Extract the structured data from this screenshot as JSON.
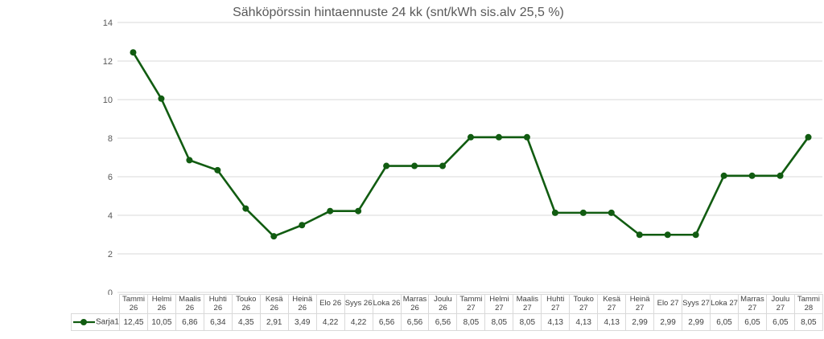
{
  "title": "Sähköpörssin hintaennuste 24 kk (snt/kWh sis.alv 25,5 %)",
  "chart_data": {
    "type": "line",
    "title": "Sähköpörssin hintaennuste 24 kk (snt/kWh sis.alv 25,5 %)",
    "xlabel": "",
    "ylabel": "",
    "ylim": [
      0,
      14
    ],
    "y_ticks": [
      0,
      2,
      4,
      6,
      8,
      10,
      12,
      14
    ],
    "grid": true,
    "legend_position": "data-table-row-header",
    "series_name": "Sarja1",
    "categories": [
      "Tammi 26",
      "Helmi 26",
      "Maalis 26",
      "Huhti 26",
      "Touko 26",
      "Kesä 26",
      "Heinä 26",
      "Elo 26",
      "Syys 26",
      "Loka 26",
      "Marras 26",
      "Joulu 26",
      "Tammi 27",
      "Helmi 27",
      "Maalis 27",
      "Huhti 27",
      "Touko 27",
      "Kesä 27",
      "Heinä 27",
      "Elo 27",
      "Syys 27",
      "Loka 27",
      "Marras 27",
      "Joulu 27",
      "Tammi 28"
    ],
    "header_lines": [
      [
        "Tammi",
        "26"
      ],
      [
        "Helmi",
        "26"
      ],
      [
        "Maalis",
        "26"
      ],
      [
        "Huhti",
        "26"
      ],
      [
        "Touko",
        "26"
      ],
      [
        "Kesä 26"
      ],
      [
        "Heinä",
        "26"
      ],
      [
        "Elo 26"
      ],
      [
        "Syys 26"
      ],
      [
        "Loka 26"
      ],
      [
        "Marras",
        "26"
      ],
      [
        "Joulu",
        "26"
      ],
      [
        "Tammi",
        "27"
      ],
      [
        "Helmi",
        "27"
      ],
      [
        "Maalis",
        "27"
      ],
      [
        "Huhti",
        "27"
      ],
      [
        "Touko",
        "27"
      ],
      [
        "Kesä 27"
      ],
      [
        "Heinä",
        "27"
      ],
      [
        "Elo 27"
      ],
      [
        "Syys 27"
      ],
      [
        "Loka 27"
      ],
      [
        "Marras",
        "27"
      ],
      [
        "Joulu",
        "27"
      ],
      [
        "Tammi",
        "28"
      ]
    ],
    "values": [
      12.45,
      10.05,
      6.86,
      6.34,
      4.35,
      2.91,
      3.49,
      4.22,
      4.22,
      6.56,
      6.56,
      6.56,
      8.05,
      8.05,
      8.05,
      4.13,
      4.13,
      4.13,
      2.99,
      2.99,
      2.99,
      6.05,
      6.05,
      6.05,
      8.05
    ],
    "value_labels": [
      "12,45",
      "10,05",
      "6,86",
      "6,34",
      "4,35",
      "2,91",
      "3,49",
      "4,22",
      "4,22",
      "6,56",
      "6,56",
      "6,56",
      "8,05",
      "8,05",
      "8,05",
      "4,13",
      "4,13",
      "4,13",
      "2,99",
      "2,99",
      "2,99",
      "6,05",
      "6,05",
      "6,05",
      "8,05"
    ],
    "colors": {
      "line": "#115c11",
      "marker": "#115c11",
      "grid": "#d9d9d9",
      "axis_text": "#595959",
      "title_text": "#595959",
      "table_text": "#404040",
      "table_border": "#d9d9d9"
    }
  }
}
